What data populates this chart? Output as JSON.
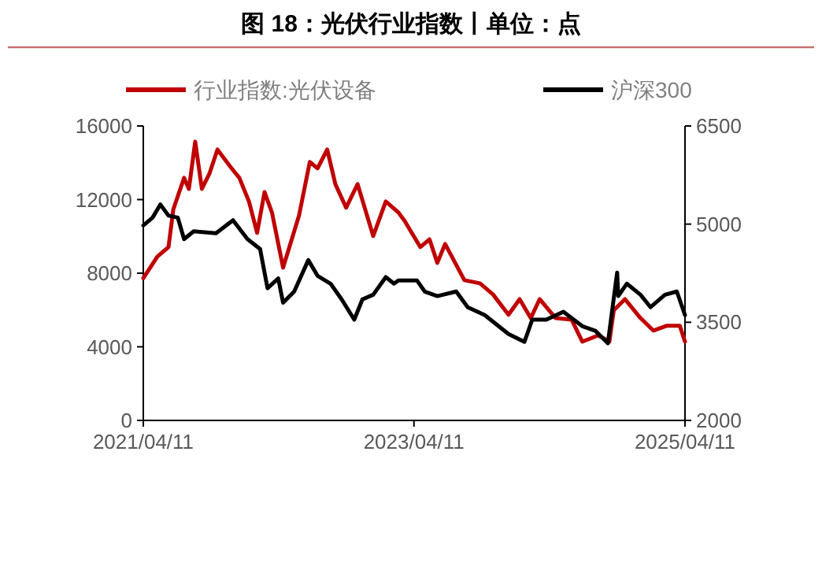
{
  "chart_data": {
    "type": "line",
    "title": "图 18：光伏行业指数丨单位：点",
    "legend": "top",
    "grid": false,
    "line_style": "solid",
    "xlim": [
      "2021-04-11",
      "2025-04-11"
    ],
    "xticks": [
      {
        "value": "2021-04-11",
        "label": "2021/04/11"
      },
      {
        "value": "2023-04-11",
        "label": "2023/04/11"
      },
      {
        "value": "2025-04-11",
        "label": "2025/04/11"
      }
    ],
    "ylim": [
      0,
      16000
    ],
    "yticks": [
      0,
      4000,
      8000,
      12000,
      16000
    ],
    "y2lim": [
      2000,
      6500
    ],
    "y2ticks": [
      2000,
      3500,
      5000,
      6500
    ],
    "series": [
      {
        "name": "行业指数:光伏设备",
        "color": "#c00000",
        "axis": "y",
        "x": [
          "2021-04-11",
          "2021-05-19",
          "2021-06-18",
          "2021-07-01",
          "2021-07-30",
          "2021-08-12",
          "2021-08-29",
          "2021-09-16",
          "2021-10-07",
          "2021-10-28",
          "2021-12-05",
          "2021-12-26",
          "2022-01-21",
          "2022-02-12",
          "2022-03-04",
          "2022-03-24",
          "2022-04-23",
          "2022-06-05",
          "2022-07-04",
          "2022-07-25",
          "2022-08-20",
          "2022-09-11",
          "2022-10-10",
          "2022-11-10",
          "2022-12-22",
          "2023-01-25",
          "2023-02-28",
          "2023-03-16",
          "2023-04-28",
          "2023-05-23",
          "2023-06-13",
          "2023-07-04",
          "2023-08-25",
          "2023-10-06",
          "2023-11-10",
          "2023-12-22",
          "2024-01-21",
          "2024-02-20",
          "2024-03-15",
          "2024-04-27",
          "2024-06-09",
          "2024-07-08",
          "2024-08-20",
          "2024-09-19",
          "2024-10-01",
          "2024-10-31",
          "2024-12-12",
          "2025-01-16",
          "2025-02-20",
          "2025-03-28",
          "2025-04-11"
        ],
        "values": [
          7730,
          8900,
          9420,
          11470,
          13180,
          12580,
          15150,
          12580,
          13440,
          14720,
          13700,
          13180,
          11900,
          10190,
          12410,
          11300,
          8300,
          11130,
          14040,
          13700,
          14720,
          12840,
          11560,
          12840,
          10020,
          11900,
          11300,
          10870,
          9420,
          9840,
          8560,
          9590,
          7620,
          7450,
          6850,
          5740,
          6590,
          5560,
          6590,
          5560,
          5480,
          4280,
          4620,
          4280,
          5990,
          6590,
          5560,
          4880,
          5140,
          5140,
          4280
        ]
      },
      {
        "name": "沪深300",
        "color": "#000000",
        "axis": "y2",
        "x": [
          "2021-04-11",
          "2021-05-06",
          "2021-05-27",
          "2021-06-18",
          "2021-07-13",
          "2021-07-30",
          "2021-08-25",
          "2021-10-24",
          "2021-12-09",
          "2022-01-17",
          "2022-02-20",
          "2022-03-12",
          "2022-04-10",
          "2022-04-23",
          "2022-05-23",
          "2022-06-30",
          "2022-07-25",
          "2022-08-29",
          "2022-09-28",
          "2022-11-01",
          "2022-11-23",
          "2022-12-22",
          "2023-01-25",
          "2023-02-16",
          "2023-02-28",
          "2023-04-19",
          "2023-05-10",
          "2023-06-13",
          "2023-08-03",
          "2023-09-03",
          "2023-10-19",
          "2023-12-22",
          "2024-02-03",
          "2024-02-24",
          "2024-04-02",
          "2024-05-18",
          "2024-07-08",
          "2024-08-12",
          "2024-09-15",
          "2024-10-10",
          "2024-10-13",
          "2024-11-05",
          "2024-12-12",
          "2025-01-08",
          "2025-02-16",
          "2025-03-20",
          "2025-04-11"
        ],
        "values": [
          4980,
          5100,
          5300,
          5130,
          5100,
          4770,
          4890,
          4860,
          5060,
          4770,
          4620,
          4020,
          4170,
          3800,
          3970,
          4450,
          4210,
          4090,
          3850,
          3540,
          3850,
          3920,
          4190,
          4090,
          4140,
          4140,
          3970,
          3900,
          3970,
          3730,
          3610,
          3320,
          3200,
          3540,
          3540,
          3660,
          3440,
          3370,
          3180,
          4260,
          3900,
          4090,
          3920,
          3730,
          3920,
          3970,
          3610
        ]
      }
    ]
  }
}
